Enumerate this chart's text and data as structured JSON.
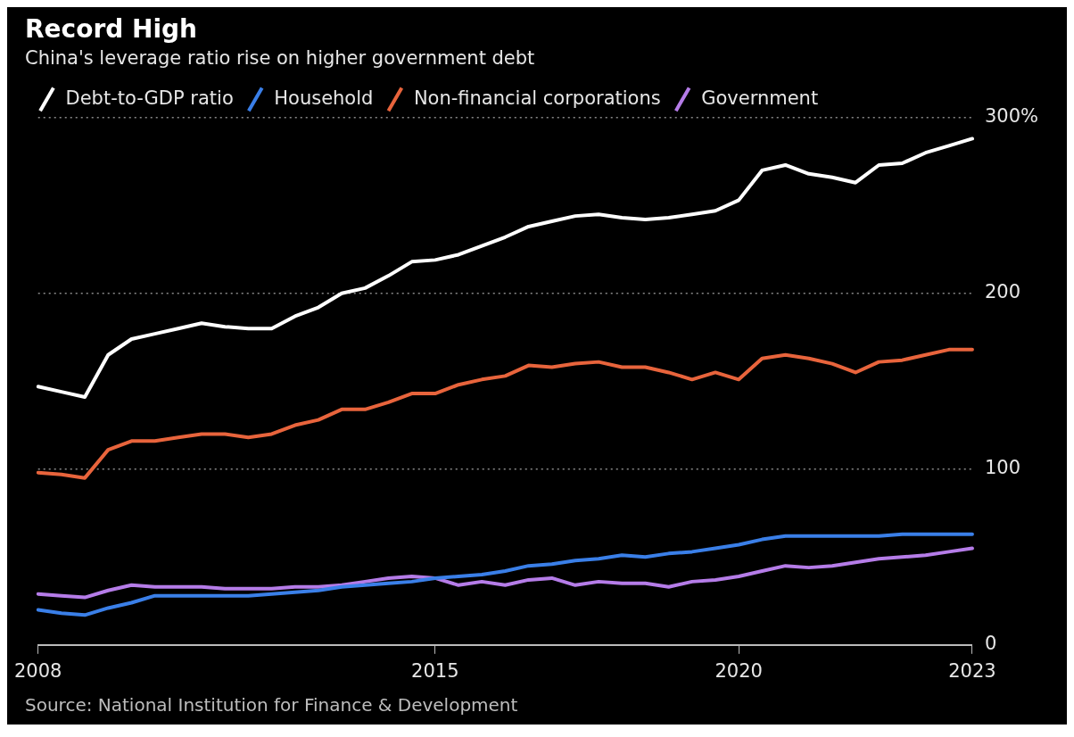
{
  "chart_data": {
    "type": "line",
    "title": "Record High",
    "subtitle": "China's leverage ratio rise on higher government debt",
    "categories": [
      "2008",
      null,
      null,
      null,
      null,
      null,
      null,
      null,
      null,
      null,
      null,
      null,
      null,
      null,
      null,
      null,
      null,
      "2015",
      null,
      null,
      null,
      null,
      null,
      null,
      null,
      null,
      null,
      null,
      null,
      null,
      "2020",
      null,
      null,
      null,
      null,
      null,
      null,
      null,
      null,
      null,
      "2023"
    ],
    "series": [
      {
        "name": "Debt-to-GDP ratio",
        "color": "#ffffff",
        "values": [
          147,
          144,
          141,
          165,
          174,
          177,
          180,
          183,
          181,
          180,
          180,
          187,
          192,
          200,
          203,
          210,
          218,
          219,
          222,
          227,
          232,
          238,
          241,
          244,
          245,
          243,
          242,
          243,
          245,
          247,
          253,
          270,
          273,
          268,
          266,
          263,
          273,
          274,
          280,
          284,
          288
        ]
      },
      {
        "name": "Household",
        "color": "#3a7fe8",
        "values": [
          20,
          18,
          17,
          21,
          24,
          28,
          28,
          28,
          28,
          28,
          29,
          30,
          31,
          33,
          34,
          35,
          36,
          38,
          39,
          40,
          42,
          45,
          46,
          48,
          49,
          51,
          50,
          52,
          53,
          55,
          57,
          60,
          62,
          62,
          62,
          62,
          62,
          63,
          63,
          63,
          63
        ]
      },
      {
        "name": "Non-financial corporations",
        "color": "#e8643c",
        "values": [
          98,
          97,
          95,
          111,
          116,
          116,
          118,
          120,
          120,
          118,
          120,
          125,
          128,
          134,
          134,
          138,
          143,
          143,
          148,
          151,
          153,
          159,
          158,
          160,
          161,
          158,
          158,
          155,
          151,
          155,
          151,
          163,
          165,
          163,
          160,
          155,
          161,
          162,
          165,
          168,
          168
        ]
      },
      {
        "name": "Government",
        "color": "#b57ce8",
        "values": [
          29,
          28,
          27,
          31,
          34,
          33,
          33,
          33,
          32,
          32,
          32,
          33,
          33,
          34,
          36,
          38,
          39,
          38,
          34,
          36,
          34,
          37,
          38,
          34,
          36,
          35,
          35,
          33,
          36,
          37,
          39,
          42,
          45,
          44,
          45,
          47,
          49,
          50,
          51,
          53,
          55
        ]
      }
    ],
    "ylim": [
      0,
      300
    ],
    "yticks": [
      0,
      100,
      200,
      {
        "value": 300,
        "label": "300%"
      }
    ],
    "grid": "y",
    "legend": "top left",
    "marker": "none",
    "line_style": "solid",
    "annotations": [
      "Source: National Institution for Finance & Development"
    ]
  }
}
